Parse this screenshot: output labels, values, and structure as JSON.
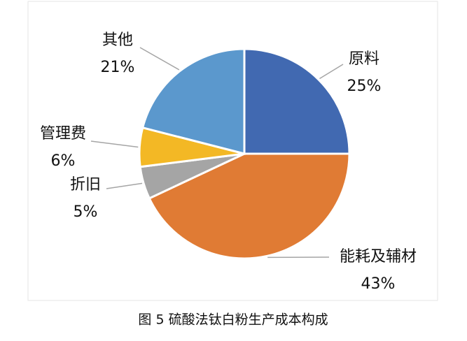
{
  "chart_data": {
    "type": "pie",
    "caption": "图 5  硫酸法钛白粉生产成本构成",
    "categories": [
      "原料",
      "能耗及辅材",
      "折旧",
      "管理费",
      "其他"
    ],
    "values": [
      25,
      43,
      5,
      6,
      21
    ],
    "value_labels": [
      "25%",
      "43%",
      "5%",
      "6%",
      "21%"
    ],
    "colors": [
      "#4169b1",
      "#e07b34",
      "#a5a5a5",
      "#f3b825",
      "#5b98cd"
    ]
  }
}
